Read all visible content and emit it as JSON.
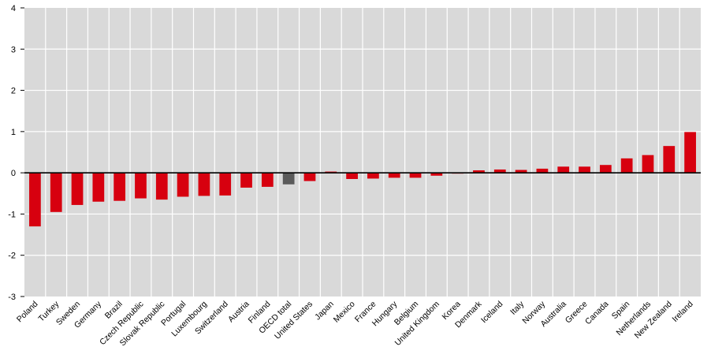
{
  "chart_data": {
    "type": "bar",
    "title": "",
    "xlabel": "",
    "ylabel": "",
    "ylim": [
      -3,
      4
    ],
    "yticks": [
      "4",
      "3",
      "2",
      "1",
      "0",
      "-1",
      "-2",
      "-3"
    ],
    "grid": true,
    "categories": [
      "Poland",
      "Turkey",
      "Sweden",
      "Germany",
      "Brazil",
      "Czech Republic",
      "Slovak Republic",
      "Portugal",
      "Luxembourg",
      "Switzerland",
      "Austria",
      "Finland",
      "OECD total",
      "United States",
      "Japan",
      "Mexico",
      "France",
      "Hungary",
      "Belgium",
      "United Kingdom",
      "Korea",
      "Denmark",
      "Iceland",
      "Italy",
      "Norway",
      "Australia",
      "Greece",
      "Canada",
      "Spain",
      "Netherlands",
      "New Zealand",
      "Ireland"
    ],
    "values": [
      -1.3,
      -0.95,
      -0.78,
      -0.7,
      -0.68,
      -0.62,
      -0.65,
      -0.58,
      -0.56,
      -0.55,
      -0.36,
      -0.34,
      -0.28,
      -0.2,
      0.03,
      -0.15,
      -0.14,
      -0.12,
      -0.12,
      -0.07,
      -0.02,
      0.06,
      0.08,
      0.07,
      0.1,
      0.15,
      0.15,
      0.19,
      0.35,
      0.43,
      0.65,
      0.99
    ],
    "highlight_category": "OECD total",
    "colors": {
      "bar": "#d7000f",
      "highlight": "#5a5a5a",
      "plot_background": "#d9d9d9",
      "gridline": "#ffffff",
      "zero_line": "#000000"
    }
  }
}
